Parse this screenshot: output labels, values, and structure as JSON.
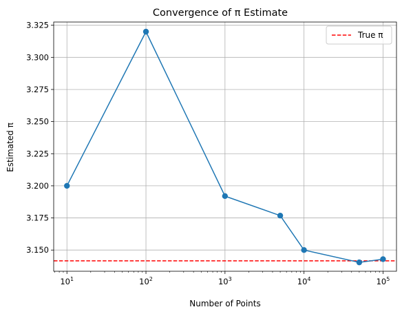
{
  "chart_data": {
    "type": "line",
    "title": "Convergence of π Estimate",
    "xlabel": "Number of Points",
    "ylabel": "Estimated π",
    "xscale": "log",
    "xlim": [
      6.8,
      148000
    ],
    "ylim": [
      3.1335,
      3.3275
    ],
    "grid": true,
    "legend_position": "top-right",
    "x_ticks": [
      {
        "base": "10",
        "exp": "1",
        "value": 10
      },
      {
        "base": "10",
        "exp": "2",
        "value": 100
      },
      {
        "base": "10",
        "exp": "3",
        "value": 1000
      },
      {
        "base": "10",
        "exp": "4",
        "value": 10000
      },
      {
        "base": "10",
        "exp": "5",
        "value": 100000
      }
    ],
    "y_ticks": [
      "3.150",
      "3.175",
      "3.200",
      "3.225",
      "3.250",
      "3.275",
      "3.300",
      "3.325"
    ],
    "series": [
      {
        "color": "#1f77b4",
        "marker": "circle",
        "x": [
          10,
          100,
          1000,
          5000,
          10000,
          50000,
          100000
        ],
        "y": [
          3.2,
          3.32,
          3.192,
          3.1768,
          3.15,
          3.1404,
          3.1429
        ]
      }
    ],
    "reference_lines": [
      {
        "name": "True π",
        "y": 3.14159,
        "color": "#ff0000",
        "style": "dashed"
      }
    ]
  }
}
